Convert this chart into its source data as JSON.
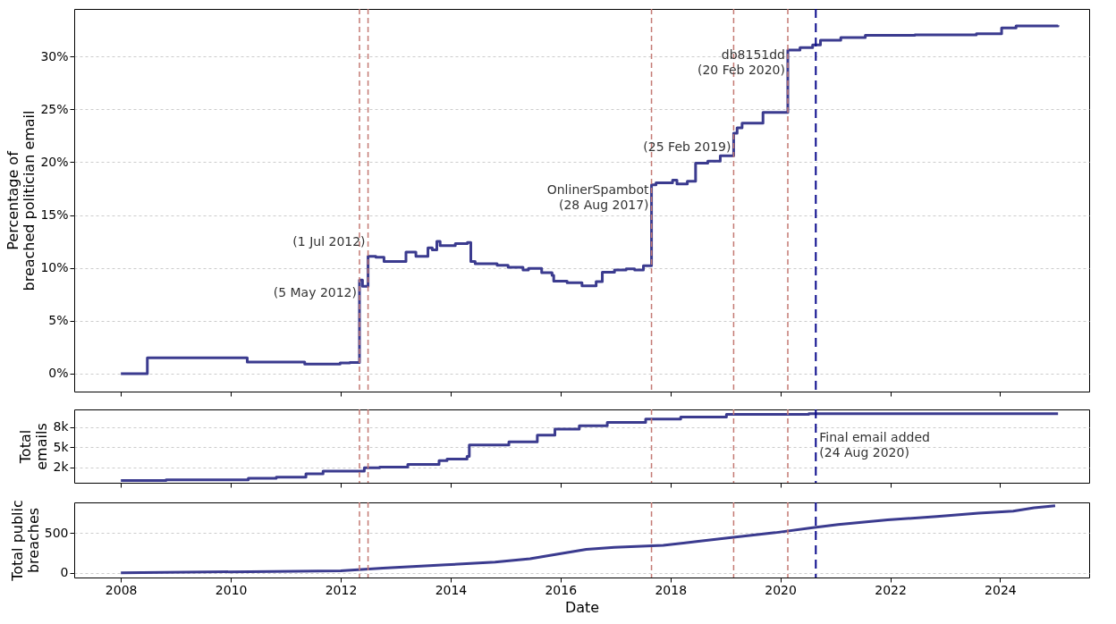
{
  "chart_data": [
    {
      "type": "step",
      "ylabel": "Percentage of\nbreached politician email",
      "color": "#3b3b8f",
      "x": [
        "2008-01-01",
        "2008-06-25",
        "2010-04-20",
        "2011-05-07",
        "2011-12-28",
        "2012-03-01",
        "2012-05-05",
        "2012-05-25",
        "2012-07-01",
        "2012-08-22",
        "2012-10-15",
        "2013-03-10",
        "2013-05-15",
        "2013-08-03",
        "2013-09-01",
        "2013-10-01",
        "2013-10-23",
        "2014-02-01",
        "2014-04-22",
        "2014-05-15",
        "2014-06-13",
        "2014-11-06",
        "2015-01-18",
        "2015-04-27",
        "2015-06-02",
        "2015-08-29",
        "2015-11-06",
        "2015-11-17",
        "2016-02-14",
        "2016-05-23",
        "2016-08-25",
        "2016-10-05",
        "2016-12-25",
        "2017-03-12",
        "2017-05-08",
        "2017-07-05",
        "2017-08-28",
        "2017-09-27",
        "2018-01-15",
        "2018-02-13",
        "2018-04-23",
        "2018-06-17",
        "2018-09-06",
        "2018-11-28",
        "2019-02-25",
        "2019-03-20",
        "2019-04-22",
        "2019-09-08",
        "2020-02-20",
        "2020-05-11",
        "2020-08-03",
        "2020-09-24",
        "2021-02-06",
        "2021-07-19",
        "2022-06-13",
        "2023-07-27",
        "2024-01-11",
        "2024-04-16",
        "2025-01-20"
      ],
      "values": [
        0,
        1.5,
        1.1,
        0.9,
        1.0,
        1.05,
        8.85,
        8.25,
        11.1,
        11.0,
        10.6,
        11.5,
        11.1,
        11.9,
        11.7,
        12.5,
        12.1,
        12.3,
        12.4,
        10.6,
        10.4,
        10.25,
        10.05,
        9.8,
        9.95,
        9.55,
        9.3,
        8.75,
        8.6,
        8.3,
        8.7,
        9.6,
        9.8,
        9.9,
        9.8,
        10.2,
        17.85,
        18.05,
        18.3,
        17.95,
        18.2,
        19.9,
        20.1,
        20.6,
        22.75,
        23.25,
        23.7,
        24.7,
        30.6,
        30.85,
        31.1,
        31.55,
        31.8,
        32.0,
        32.05,
        32.15,
        32.7,
        32.9,
        32.95
      ],
      "xlim": [
        "2007-02-25",
        "2025-08-15"
      ],
      "xticks": [
        "2008",
        "2010",
        "2012",
        "2014",
        "2016",
        "2018",
        "2020",
        "2022",
        "2024"
      ],
      "ylim": [
        -1.7,
        34.5
      ],
      "yticks": [
        {
          "value": 0,
          "label": "0%"
        },
        {
          "value": 5,
          "label": "5%"
        },
        {
          "value": 10,
          "label": "10%"
        },
        {
          "value": 15,
          "label": "15%"
        },
        {
          "value": 20,
          "label": "20%"
        },
        {
          "value": 25,
          "label": "25%"
        },
        {
          "value": 30,
          "label": "30%"
        }
      ],
      "grid": "y",
      "tick_labels": "y",
      "ref_lines": [
        {
          "axis": "x",
          "value": "2012-05-05",
          "color": "#c47a74",
          "line_style": "dashed"
        },
        {
          "axis": "x",
          "value": "2012-07-01",
          "color": "#c47a74",
          "line_style": "dashed"
        },
        {
          "axis": "x",
          "value": "2017-08-28",
          "color": "#c47a74",
          "line_style": "dashed"
        },
        {
          "axis": "x",
          "value": "2019-02-25",
          "color": "#c47a74",
          "line_style": "dashed"
        },
        {
          "axis": "x",
          "value": "2020-02-20",
          "color": "#c47a74",
          "line_style": "dashed"
        },
        {
          "axis": "x",
          "value": "2020-08-24",
          "color": "#0a0a8c",
          "line_style": "dashed"
        }
      ],
      "annotations": [
        {
          "text": "(5 May 2012)",
          "x": "2012-05-05",
          "y": 7.6
        },
        {
          "text": "(1 Jul 2012)",
          "x": "2012-07-01",
          "y": 12.4
        },
        {
          "text": "OnlinerSpambot\n(28 Aug 2017)",
          "x": "2017-08-28",
          "y": 17.3
        },
        {
          "text": "(25 Feb 2019)",
          "x": "2019-02-25",
          "y": 21.4
        },
        {
          "text": "db8151dd\n(20 Feb 2020)",
          "x": "2020-02-20",
          "y": 30.1
        }
      ]
    },
    {
      "type": "step",
      "ylabel": "Total\nemails",
      "color": "#3b3b8f",
      "x": [
        "2008-01-01",
        "2008-10-27",
        "2010-04-27",
        "2010-10-30",
        "2011-05-15",
        "2011-09-06",
        "2012-06-06",
        "2012-09-16",
        "2013-03-22",
        "2013-10-16",
        "2013-12-08",
        "2014-04-20",
        "2014-05-05",
        "2015-01-23",
        "2015-07-31",
        "2015-11-25",
        "2016-05-05",
        "2016-11-07",
        "2017-07-20",
        "2018-03-10",
        "2019-01-08",
        "2020-07-08",
        "2025-01-20"
      ],
      "values": [
        885,
        970,
        1150,
        1290,
        1710,
        2040,
        2460,
        2540,
        2875,
        3360,
        3540,
        3860,
        5280,
        5690,
        6520,
        7270,
        7680,
        8090,
        8510,
        8760,
        9090,
        9180,
        9180
      ],
      "xlim": [
        "2007-02-25",
        "2025-08-15"
      ],
      "xticks": [
        "2008",
        "2010",
        "2012",
        "2014",
        "2016",
        "2018",
        "2020",
        "2022",
        "2024"
      ],
      "ylim": [
        600,
        9700
      ],
      "yticks": [
        {
          "value": 2500,
          "label": "2k"
        },
        {
          "value": 5000,
          "label": "5k"
        },
        {
          "value": 7500,
          "label": "8k"
        }
      ],
      "grid": "y",
      "tick_labels": "y",
      "ref_lines": [
        {
          "axis": "x",
          "value": "2012-05-05",
          "color": "#c47a74",
          "line_style": "dashed"
        },
        {
          "axis": "x",
          "value": "2012-07-01",
          "color": "#c47a74",
          "line_style": "dashed"
        },
        {
          "axis": "x",
          "value": "2017-08-28",
          "color": "#c47a74",
          "line_style": "dashed"
        },
        {
          "axis": "x",
          "value": "2019-02-25",
          "color": "#c47a74",
          "line_style": "dashed"
        },
        {
          "axis": "x",
          "value": "2020-02-20",
          "color": "#c47a74",
          "line_style": "dashed"
        },
        {
          "axis": "x",
          "value": "2020-08-24",
          "color": "#0a0a8c",
          "line_style": "dashed"
        }
      ],
      "annotations": [
        {
          "text": "Final email added\n(24 Aug 2020)",
          "x": "2020-08-24",
          "y": 6150
        }
      ]
    },
    {
      "type": "line",
      "xlabel": "Date",
      "ylabel": "Total public\nbreaches",
      "color": "#3b3b8f",
      "x": [
        "2008-01-01",
        "2012-01-01",
        "2012-10-08",
        "2013-12-01",
        "2014-10-23",
        "2015-06-13",
        "2015-12-16",
        "2016-06-21",
        "2016-12-24",
        "2017-11-14",
        "2018-07-05",
        "2019-02-24",
        "2019-11-28",
        "2020-07-23",
        "2021-01-19",
        "2021-12-14",
        "2022-11-06",
        "2023-08-11",
        "2024-03-28",
        "2024-08-14",
        "2025-01-01"
      ],
      "values": [
        0,
        25,
        58,
        100,
        135,
        178,
        236,
        296,
        321,
        347,
        398,
        449,
        507,
        567,
        610,
        669,
        711,
        753,
        779,
        821,
        847
      ],
      "xlim": [
        "2007-02-25",
        "2025-08-15"
      ],
      "xticks": [
        "2008",
        "2010",
        "2012",
        "2014",
        "2016",
        "2018",
        "2020",
        "2022",
        "2024"
      ],
      "ylim": [
        -60,
        890
      ],
      "yticks": [
        0,
        500
      ],
      "grid": "y",
      "ref_lines": [
        {
          "axis": "x",
          "value": "2012-05-05",
          "color": "#c47a74",
          "line_style": "dashed"
        },
        {
          "axis": "x",
          "value": "2012-07-01",
          "color": "#c47a74",
          "line_style": "dashed"
        },
        {
          "axis": "x",
          "value": "2017-08-28",
          "color": "#c47a74",
          "line_style": "dashed"
        },
        {
          "axis": "x",
          "value": "2019-02-25",
          "color": "#c47a74",
          "line_style": "dashed"
        },
        {
          "axis": "x",
          "value": "2020-02-20",
          "color": "#c47a74",
          "line_style": "dashed"
        },
        {
          "axis": "x",
          "value": "2020-08-24",
          "color": "#0a0a8c",
          "line_style": "dashed"
        }
      ]
    }
  ]
}
